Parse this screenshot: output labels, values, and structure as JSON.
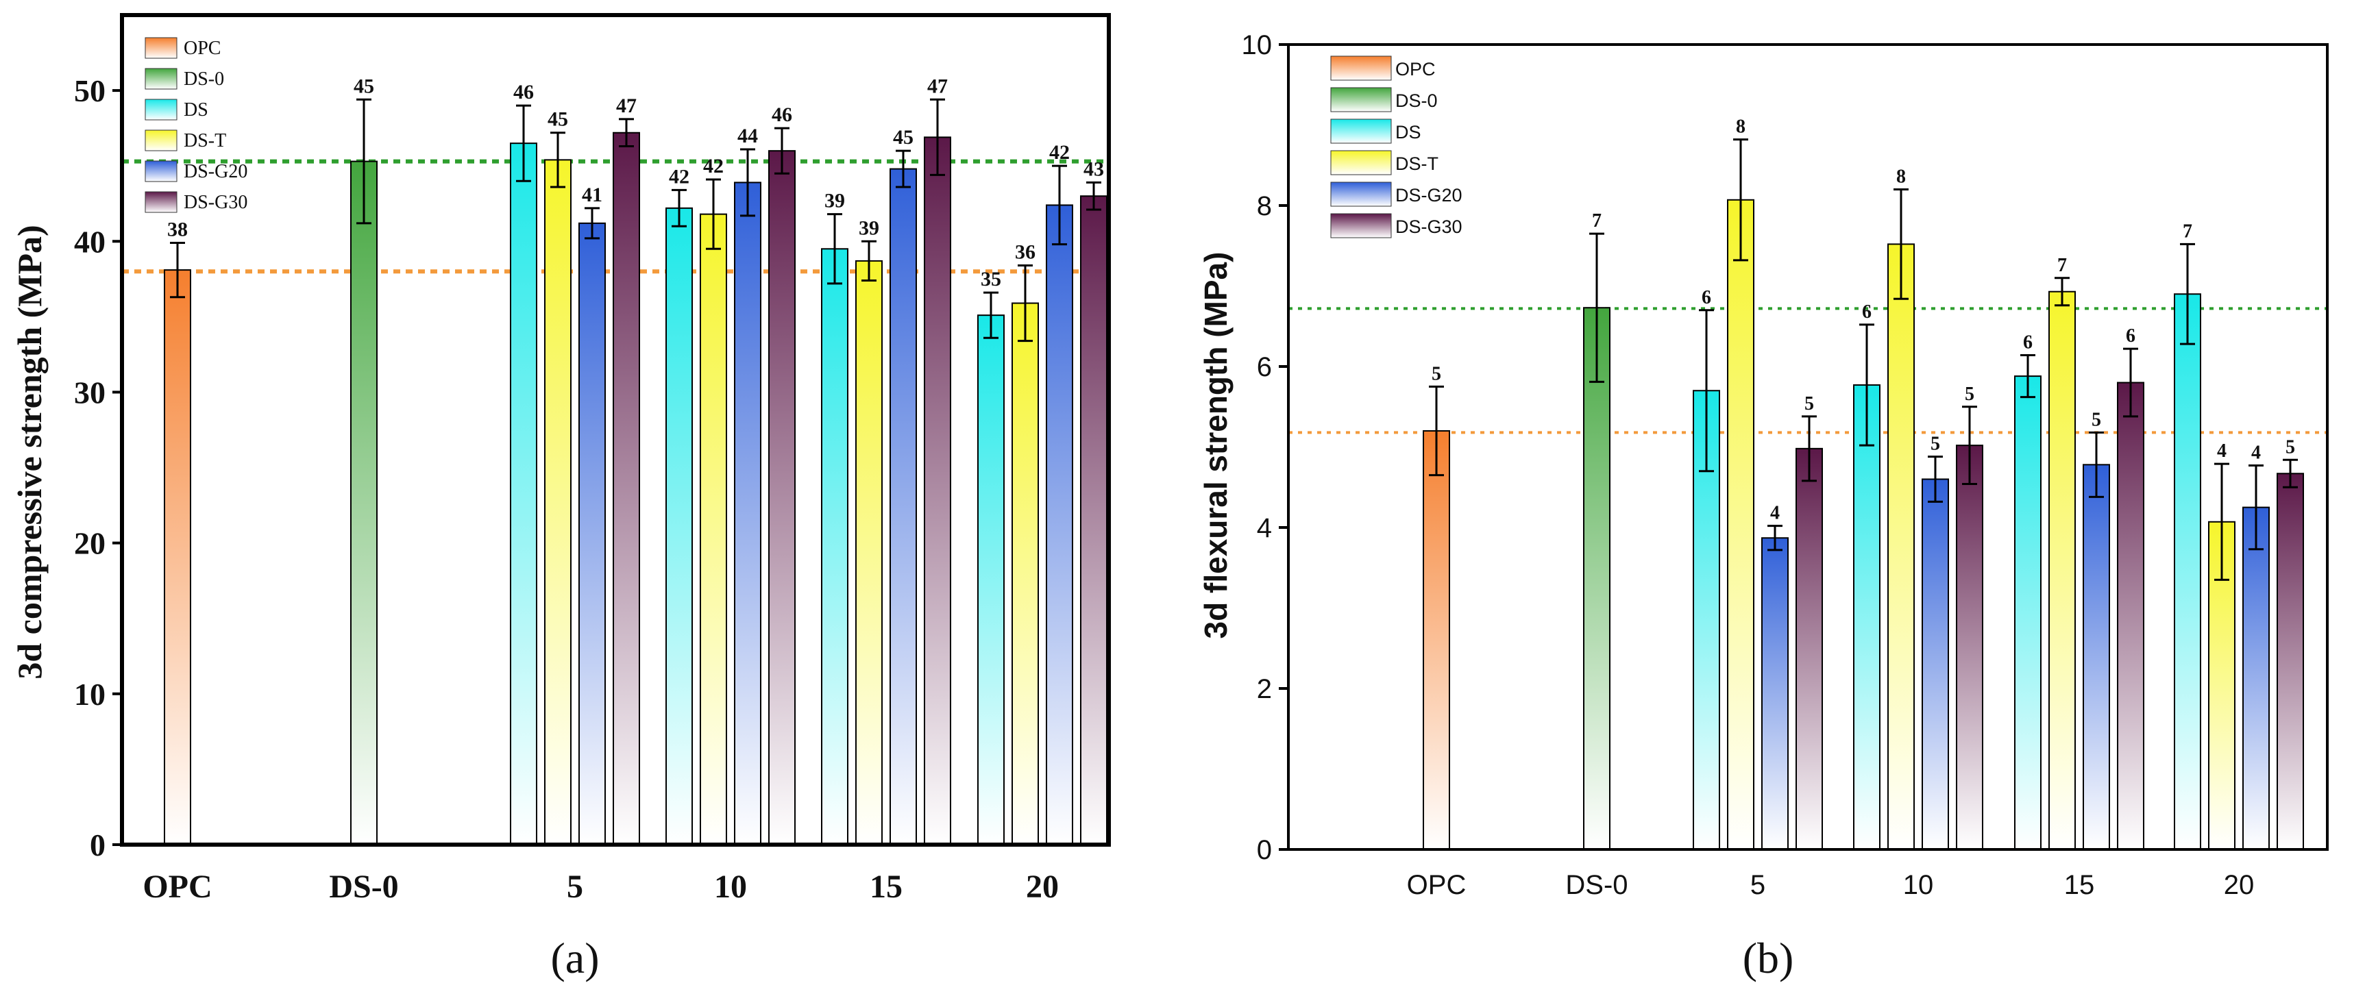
{
  "figure": {
    "series_colors": {
      "OPC": "#f57f2e",
      "DS-0": "#43a63e",
      "DS": "#19e8e8",
      "DS-T": "#f6f52b",
      "DS-G20": "#2f5fd8",
      "DS-G30": "#5b1848"
    },
    "ref_line_colors": {
      "OPC": "#f39a3c",
      "DS-0": "#2e9e2e"
    }
  },
  "chart_data": [
    {
      "type": "bar",
      "panel_label": "(a)",
      "xlabel": "",
      "ylabel": "3d compressive strength (MPa)",
      "ylim": [
        0,
        55
      ],
      "yticks": [
        "0",
        "10",
        "20",
        "30",
        "40",
        "50"
      ],
      "categories": [
        "OPC",
        "DS-0",
        "5",
        "10",
        "15",
        "20"
      ],
      "legend": [
        "OPC",
        "DS-0",
        "DS",
        "DS-T",
        "DS-G20",
        "DS-G30"
      ],
      "legend_position": "top-left",
      "reference_lines": [
        {
          "name": "OPC",
          "value": 38
        },
        {
          "name": "DS-0",
          "value": 45.3
        }
      ],
      "bars": [
        {
          "category": "OPC",
          "series": "OPC",
          "value": 38.1,
          "error": 1.8,
          "label": "38"
        },
        {
          "category": "DS-0",
          "series": "DS-0",
          "value": 45.3,
          "error": 4.1,
          "label": "45"
        },
        {
          "category": "5",
          "series": "DS",
          "value": 46.5,
          "error": 2.5,
          "label": "46"
        },
        {
          "category": "5",
          "series": "DS-T",
          "value": 45.4,
          "error": 1.8,
          "label": "45"
        },
        {
          "category": "5",
          "series": "DS-G20",
          "value": 41.2,
          "error": 1.0,
          "label": "41"
        },
        {
          "category": "5",
          "series": "DS-G30",
          "value": 47.2,
          "error": 0.9,
          "label": "47"
        },
        {
          "category": "10",
          "series": "DS",
          "value": 42.2,
          "error": 1.2,
          "label": "42"
        },
        {
          "category": "10",
          "series": "DS-T",
          "value": 41.8,
          "error": 2.3,
          "label": "42"
        },
        {
          "category": "10",
          "series": "DS-G20",
          "value": 43.9,
          "error": 2.2,
          "label": "44"
        },
        {
          "category": "10",
          "series": "DS-G30",
          "value": 46.0,
          "error": 1.5,
          "label": "46"
        },
        {
          "category": "15",
          "series": "DS",
          "value": 39.5,
          "error": 2.3,
          "label": "39"
        },
        {
          "category": "15",
          "series": "DS-T",
          "value": 38.7,
          "error": 1.3,
          "label": "39"
        },
        {
          "category": "15",
          "series": "DS-G20",
          "value": 44.8,
          "error": 1.2,
          "label": "45"
        },
        {
          "category": "15",
          "series": "DS-G30",
          "value": 46.9,
          "error": 2.5,
          "label": "47"
        },
        {
          "category": "20",
          "series": "DS",
          "value": 35.1,
          "error": 1.5,
          "label": "35"
        },
        {
          "category": "20",
          "series": "DS-T",
          "value": 35.9,
          "error": 2.5,
          "label": "36"
        },
        {
          "category": "20",
          "series": "DS-G20",
          "value": 42.4,
          "error": 2.6,
          "label": "42"
        },
        {
          "category": "20",
          "series": "DS-G30",
          "value": 43.0,
          "error": 0.9,
          "label": "43"
        }
      ]
    },
    {
      "type": "bar",
      "panel_label": "(b)",
      "xlabel": "",
      "ylabel": "3d flexural strength (MPa)",
      "ylim": [
        0,
        10
      ],
      "yticks": [
        "0",
        "2",
        "4",
        "6",
        "8",
        "10"
      ],
      "categories": [
        "OPC",
        "DS-0",
        "5",
        "10",
        "15",
        "20"
      ],
      "legend": [
        "OPC",
        "DS-0",
        "DS",
        "DS-T",
        "DS-G20",
        "DS-G30"
      ],
      "legend_position": "top-left",
      "reference_lines": [
        {
          "name": "OPC",
          "value": 5.18
        },
        {
          "name": "DS-0",
          "value": 6.72
        }
      ],
      "bars": [
        {
          "category": "OPC",
          "series": "OPC",
          "value": 5.2,
          "error": 0.55,
          "label": "5"
        },
        {
          "category": "DS-0",
          "series": "DS-0",
          "value": 6.73,
          "error": 0.92,
          "label": "7"
        },
        {
          "category": "5",
          "series": "DS",
          "value": 5.7,
          "error": 1.0,
          "label": "6"
        },
        {
          "category": "5",
          "series": "DS-T",
          "value": 8.07,
          "error": 0.75,
          "label": "8"
        },
        {
          "category": "5",
          "series": "DS-G20",
          "value": 3.87,
          "error": 0.15,
          "label": "4"
        },
        {
          "category": "5",
          "series": "DS-G30",
          "value": 4.98,
          "error": 0.4,
          "label": "5"
        },
        {
          "category": "10",
          "series": "DS",
          "value": 5.77,
          "error": 0.75,
          "label": "6"
        },
        {
          "category": "10",
          "series": "DS-T",
          "value": 7.52,
          "error": 0.68,
          "label": "8"
        },
        {
          "category": "10",
          "series": "DS-G20",
          "value": 4.6,
          "error": 0.28,
          "label": "5"
        },
        {
          "category": "10",
          "series": "DS-G30",
          "value": 5.02,
          "error": 0.48,
          "label": "5"
        },
        {
          "category": "15",
          "series": "DS",
          "value": 5.88,
          "error": 0.26,
          "label": "6"
        },
        {
          "category": "15",
          "series": "DS-T",
          "value": 6.93,
          "error": 0.17,
          "label": "7"
        },
        {
          "category": "15",
          "series": "DS-G20",
          "value": 4.78,
          "error": 0.4,
          "label": "5"
        },
        {
          "category": "15",
          "series": "DS-G30",
          "value": 5.8,
          "error": 0.42,
          "label": "6"
        },
        {
          "category": "20",
          "series": "DS",
          "value": 6.9,
          "error": 0.62,
          "label": "7"
        },
        {
          "category": "20",
          "series": "DS-T",
          "value": 4.07,
          "error": 0.72,
          "label": "4"
        },
        {
          "category": "20",
          "series": "DS-G20",
          "value": 4.25,
          "error": 0.52,
          "label": "4"
        },
        {
          "category": "20",
          "series": "DS-G30",
          "value": 4.67,
          "error": 0.17,
          "label": "5"
        }
      ]
    }
  ]
}
